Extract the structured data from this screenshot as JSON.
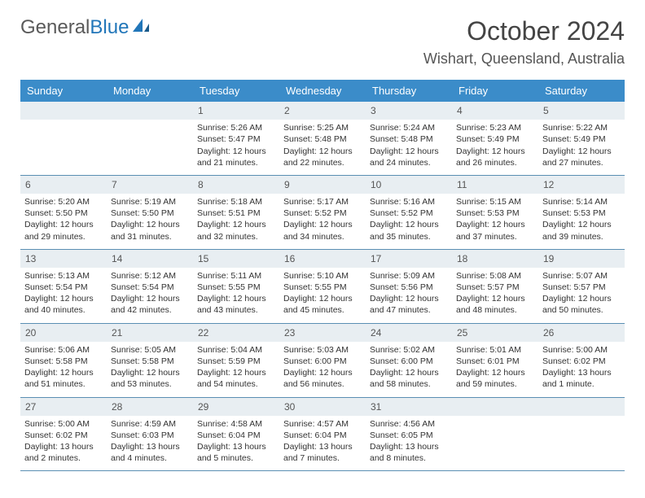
{
  "logo": {
    "text1": "General",
    "text2": "Blue"
  },
  "title": "October 2024",
  "location": "Wishart, Queensland, Australia",
  "colors": {
    "header_bg": "#3b8cc9",
    "header_text": "#ffffff",
    "daynum_bg": "#e8eef2",
    "border": "#5a8fb3",
    "logo_gray": "#5a5a5a",
    "logo_blue": "#2176b9"
  },
  "daynames": [
    "Sunday",
    "Monday",
    "Tuesday",
    "Wednesday",
    "Thursday",
    "Friday",
    "Saturday"
  ],
  "weeks": [
    [
      {},
      {},
      {
        "d": "1",
        "sr": "Sunrise: 5:26 AM",
        "ss": "Sunset: 5:47 PM",
        "dl1": "Daylight: 12 hours",
        "dl2": "and 21 minutes."
      },
      {
        "d": "2",
        "sr": "Sunrise: 5:25 AM",
        "ss": "Sunset: 5:48 PM",
        "dl1": "Daylight: 12 hours",
        "dl2": "and 22 minutes."
      },
      {
        "d": "3",
        "sr": "Sunrise: 5:24 AM",
        "ss": "Sunset: 5:48 PM",
        "dl1": "Daylight: 12 hours",
        "dl2": "and 24 minutes."
      },
      {
        "d": "4",
        "sr": "Sunrise: 5:23 AM",
        "ss": "Sunset: 5:49 PM",
        "dl1": "Daylight: 12 hours",
        "dl2": "and 26 minutes."
      },
      {
        "d": "5",
        "sr": "Sunrise: 5:22 AM",
        "ss": "Sunset: 5:49 PM",
        "dl1": "Daylight: 12 hours",
        "dl2": "and 27 minutes."
      }
    ],
    [
      {
        "d": "6",
        "sr": "Sunrise: 5:20 AM",
        "ss": "Sunset: 5:50 PM",
        "dl1": "Daylight: 12 hours",
        "dl2": "and 29 minutes."
      },
      {
        "d": "7",
        "sr": "Sunrise: 5:19 AM",
        "ss": "Sunset: 5:50 PM",
        "dl1": "Daylight: 12 hours",
        "dl2": "and 31 minutes."
      },
      {
        "d": "8",
        "sr": "Sunrise: 5:18 AM",
        "ss": "Sunset: 5:51 PM",
        "dl1": "Daylight: 12 hours",
        "dl2": "and 32 minutes."
      },
      {
        "d": "9",
        "sr": "Sunrise: 5:17 AM",
        "ss": "Sunset: 5:52 PM",
        "dl1": "Daylight: 12 hours",
        "dl2": "and 34 minutes."
      },
      {
        "d": "10",
        "sr": "Sunrise: 5:16 AM",
        "ss": "Sunset: 5:52 PM",
        "dl1": "Daylight: 12 hours",
        "dl2": "and 35 minutes."
      },
      {
        "d": "11",
        "sr": "Sunrise: 5:15 AM",
        "ss": "Sunset: 5:53 PM",
        "dl1": "Daylight: 12 hours",
        "dl2": "and 37 minutes."
      },
      {
        "d": "12",
        "sr": "Sunrise: 5:14 AM",
        "ss": "Sunset: 5:53 PM",
        "dl1": "Daylight: 12 hours",
        "dl2": "and 39 minutes."
      }
    ],
    [
      {
        "d": "13",
        "sr": "Sunrise: 5:13 AM",
        "ss": "Sunset: 5:54 PM",
        "dl1": "Daylight: 12 hours",
        "dl2": "and 40 minutes."
      },
      {
        "d": "14",
        "sr": "Sunrise: 5:12 AM",
        "ss": "Sunset: 5:54 PM",
        "dl1": "Daylight: 12 hours",
        "dl2": "and 42 minutes."
      },
      {
        "d": "15",
        "sr": "Sunrise: 5:11 AM",
        "ss": "Sunset: 5:55 PM",
        "dl1": "Daylight: 12 hours",
        "dl2": "and 43 minutes."
      },
      {
        "d": "16",
        "sr": "Sunrise: 5:10 AM",
        "ss": "Sunset: 5:55 PM",
        "dl1": "Daylight: 12 hours",
        "dl2": "and 45 minutes."
      },
      {
        "d": "17",
        "sr": "Sunrise: 5:09 AM",
        "ss": "Sunset: 5:56 PM",
        "dl1": "Daylight: 12 hours",
        "dl2": "and 47 minutes."
      },
      {
        "d": "18",
        "sr": "Sunrise: 5:08 AM",
        "ss": "Sunset: 5:57 PM",
        "dl1": "Daylight: 12 hours",
        "dl2": "and 48 minutes."
      },
      {
        "d": "19",
        "sr": "Sunrise: 5:07 AM",
        "ss": "Sunset: 5:57 PM",
        "dl1": "Daylight: 12 hours",
        "dl2": "and 50 minutes."
      }
    ],
    [
      {
        "d": "20",
        "sr": "Sunrise: 5:06 AM",
        "ss": "Sunset: 5:58 PM",
        "dl1": "Daylight: 12 hours",
        "dl2": "and 51 minutes."
      },
      {
        "d": "21",
        "sr": "Sunrise: 5:05 AM",
        "ss": "Sunset: 5:58 PM",
        "dl1": "Daylight: 12 hours",
        "dl2": "and 53 minutes."
      },
      {
        "d": "22",
        "sr": "Sunrise: 5:04 AM",
        "ss": "Sunset: 5:59 PM",
        "dl1": "Daylight: 12 hours",
        "dl2": "and 54 minutes."
      },
      {
        "d": "23",
        "sr": "Sunrise: 5:03 AM",
        "ss": "Sunset: 6:00 PM",
        "dl1": "Daylight: 12 hours",
        "dl2": "and 56 minutes."
      },
      {
        "d": "24",
        "sr": "Sunrise: 5:02 AM",
        "ss": "Sunset: 6:00 PM",
        "dl1": "Daylight: 12 hours",
        "dl2": "and 58 minutes."
      },
      {
        "d": "25",
        "sr": "Sunrise: 5:01 AM",
        "ss": "Sunset: 6:01 PM",
        "dl1": "Daylight: 12 hours",
        "dl2": "and 59 minutes."
      },
      {
        "d": "26",
        "sr": "Sunrise: 5:00 AM",
        "ss": "Sunset: 6:02 PM",
        "dl1": "Daylight: 13 hours",
        "dl2": "and 1 minute."
      }
    ],
    [
      {
        "d": "27",
        "sr": "Sunrise: 5:00 AM",
        "ss": "Sunset: 6:02 PM",
        "dl1": "Daylight: 13 hours",
        "dl2": "and 2 minutes."
      },
      {
        "d": "28",
        "sr": "Sunrise: 4:59 AM",
        "ss": "Sunset: 6:03 PM",
        "dl1": "Daylight: 13 hours",
        "dl2": "and 4 minutes."
      },
      {
        "d": "29",
        "sr": "Sunrise: 4:58 AM",
        "ss": "Sunset: 6:04 PM",
        "dl1": "Daylight: 13 hours",
        "dl2": "and 5 minutes."
      },
      {
        "d": "30",
        "sr": "Sunrise: 4:57 AM",
        "ss": "Sunset: 6:04 PM",
        "dl1": "Daylight: 13 hours",
        "dl2": "and 7 minutes."
      },
      {
        "d": "31",
        "sr": "Sunrise: 4:56 AM",
        "ss": "Sunset: 6:05 PM",
        "dl1": "Daylight: 13 hours",
        "dl2": "and 8 minutes."
      },
      {},
      {}
    ]
  ]
}
